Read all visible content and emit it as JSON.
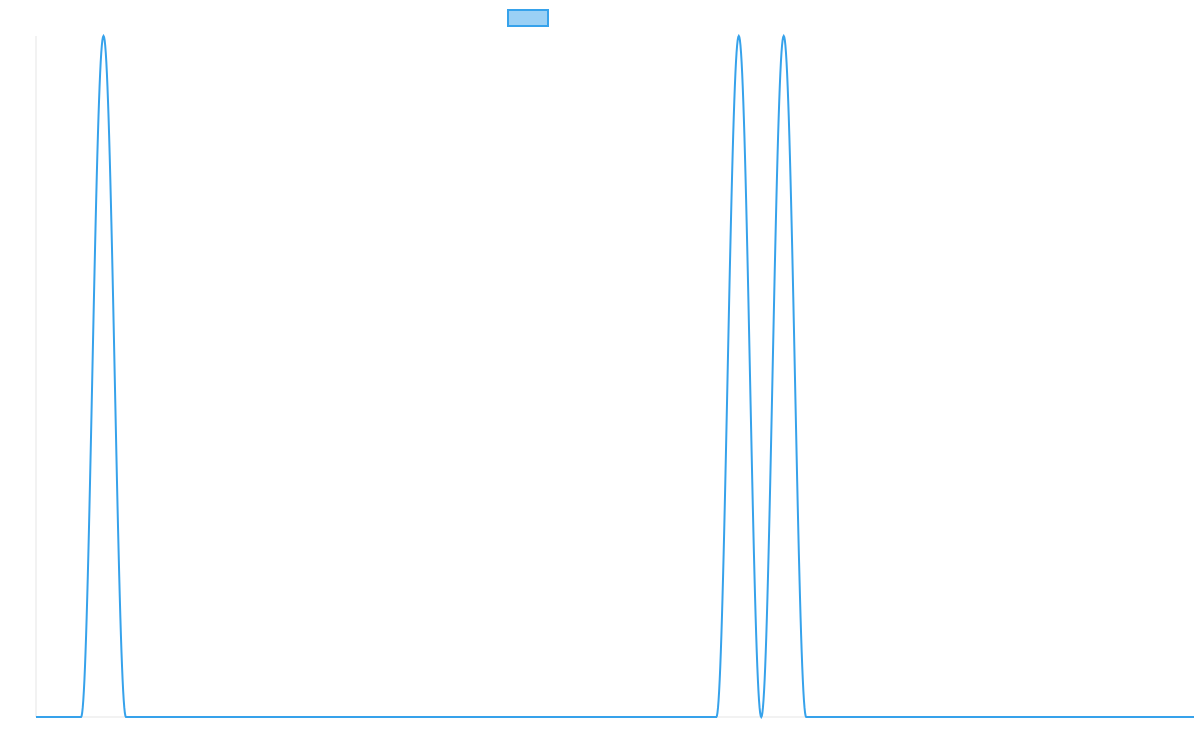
{
  "chart_data": {
    "type": "line",
    "title": "",
    "xlabel": "",
    "ylabel": "",
    "grid": false,
    "legend": {
      "position": "top-center",
      "entries": [
        ""
      ]
    },
    "colors": {
      "line": "#36a2eb",
      "legend_fill": "#9ad0f5",
      "axis": "#e5e5e5"
    },
    "xlim": [
      0,
      1
    ],
    "ylim": [
      0,
      1
    ],
    "series": [
      {
        "name": "",
        "x": [
          0.0,
          0.0389,
          0.0583,
          0.0777,
          0.5875,
          0.6069,
          0.6263,
          0.6457,
          0.6651,
          1.0
        ],
        "y": [
          0,
          0,
          1,
          0,
          0,
          1,
          0,
          1,
          0,
          0
        ]
      }
    ]
  }
}
